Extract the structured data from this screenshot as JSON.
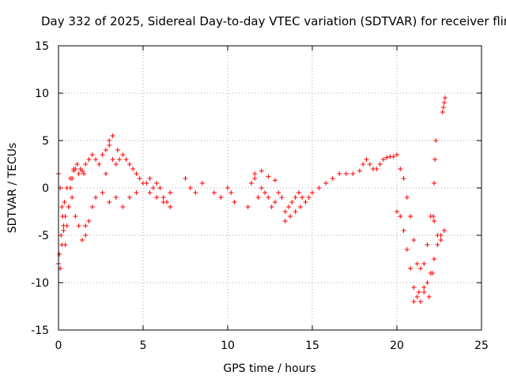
{
  "chart_data": {
    "type": "scatter",
    "title": "Day 332 of 2025, Sidereal Day-to-day VTEC variation (SDTVAR) for receiver flin",
    "xlabel": "GPS time / hours",
    "ylabel": "SDTVAR / TECUs",
    "xlim": [
      0,
      25
    ],
    "ylim": [
      -15,
      15
    ],
    "xticks": [
      0,
      5,
      10,
      15,
      20,
      25
    ],
    "yticks": [
      -15,
      -10,
      -5,
      0,
      5,
      10,
      15
    ],
    "xtick_labels": [
      "0",
      "5",
      "10",
      "15",
      "20",
      "25"
    ],
    "ytick_labels": [
      "-15",
      "-10",
      "-5",
      "0",
      "5",
      "10",
      "15"
    ],
    "grid": true,
    "marker": "+",
    "color": "#ff0000",
    "series": [
      {
        "name": "SDTVAR",
        "x": [
          0.0,
          0.1,
          0.2,
          0.3,
          0.4,
          0.5,
          0.6,
          0.7,
          0.8,
          0.9,
          1.0,
          1.2,
          1.4,
          1.6,
          1.8,
          2.0,
          2.2,
          2.4,
          2.6,
          2.8,
          3.0,
          3.2,
          3.4,
          3.6,
          3.8,
          4.0,
          4.2,
          4.4,
          4.6,
          4.8,
          5.0,
          5.2,
          5.4,
          5.6,
          5.8,
          6.0,
          6.2,
          6.4,
          6.6,
          7.5,
          7.8,
          8.1,
          8.5,
          9.2,
          9.6,
          10.0,
          10.2,
          10.4,
          11.2,
          11.4,
          11.6,
          11.8,
          12.0,
          12.2,
          12.4,
          12.6,
          12.8,
          13.0,
          13.2,
          13.4,
          13.6,
          13.8,
          14.0,
          14.2,
          14.4,
          14.6,
          14.8,
          15.0,
          15.4,
          15.8,
          16.2,
          16.6,
          17.0,
          17.4,
          17.8,
          18.0,
          18.2,
          18.4,
          18.6,
          18.8,
          19.0,
          19.2,
          19.4,
          19.6,
          19.8,
          20.0,
          20.2,
          20.4,
          20.6,
          20.8,
          21.0,
          21.2,
          21.4,
          21.6,
          21.8,
          22.0,
          22.2,
          22.4,
          22.6,
          22.8,
          0.05,
          0.15,
          0.25,
          0.35,
          0.5,
          0.7,
          0.9,
          1.1,
          1.3,
          1.5,
          0.0,
          0.1,
          0.2,
          0.3,
          0.4,
          0.6,
          0.8,
          1.0,
          1.2,
          1.4,
          1.6,
          1.8,
          2.0,
          2.2,
          2.6,
          3.0,
          3.4,
          3.8,
          4.2,
          4.6,
          5.0,
          5.4,
          5.8,
          6.2,
          6.6,
          20.0,
          20.2,
          20.4,
          20.6,
          20.8,
          21.0,
          21.2,
          21.4,
          21.6,
          21.8,
          22.0,
          22.2,
          22.4,
          22.6,
          22.8,
          21.0,
          21.3,
          21.6,
          21.9,
          22.1,
          22.15,
          22.2,
          22.25,
          22.3,
          22.7,
          22.75,
          22.8,
          22.85,
          3.0,
          3.2,
          1.6,
          2.8,
          3.5,
          13.4,
          13.7,
          14.0,
          14.3,
          14.6,
          11.6,
          12.0,
          12.4,
          12.8
        ],
        "y": [
          1.5,
          0.0,
          -2.0,
          -4.5,
          -6.0,
          -4.0,
          -2.0,
          0.0,
          1.0,
          1.8,
          2.0,
          1.5,
          1.8,
          2.5,
          3.0,
          3.5,
          3.0,
          2.5,
          3.5,
          4.0,
          4.5,
          3.0,
          2.5,
          3.0,
          3.5,
          3.0,
          2.5,
          2.0,
          1.5,
          1.0,
          0.5,
          0.5,
          1.0,
          0.0,
          0.5,
          0.0,
          -1.0,
          -1.5,
          -0.5,
          1.0,
          0.0,
          -0.5,
          0.5,
          -0.5,
          -1.0,
          0.0,
          -0.5,
          -1.5,
          -2.0,
          0.5,
          1.0,
          -1.0,
          0.0,
          -0.5,
          -1.0,
          -2.0,
          -1.5,
          -0.5,
          -1.0,
          -2.5,
          -2.0,
          -1.5,
          -1.0,
          -0.5,
          -1.0,
          -1.5,
          -1.0,
          -0.5,
          0.0,
          0.5,
          1.0,
          1.5,
          1.5,
          1.5,
          1.8,
          2.5,
          3.0,
          2.5,
          2.0,
          2.0,
          2.5,
          3.0,
          3.2,
          3.3,
          3.3,
          3.5,
          2.0,
          1.0,
          -1.0,
          -3.0,
          -5.5,
          -8.0,
          -8.5,
          -8.0,
          -6.0,
          -3.0,
          -3.5,
          -5.0,
          -5.5,
          -4.5,
          -7.0,
          -5.0,
          -3.0,
          -1.5,
          0.0,
          1.0,
          2.0,
          2.5,
          2.0,
          1.5,
          -8.0,
          -8.5,
          -6.0,
          -4.0,
          -3.0,
          -2.0,
          -1.0,
          -3.0,
          -4.0,
          -5.5,
          -5.0,
          -3.5,
          -2.0,
          -1.0,
          -0.5,
          -1.5,
          -1.0,
          -2.0,
          -1.0,
          -0.5,
          0.5,
          -0.5,
          -1.0,
          -1.5,
          -2.0,
          -2.5,
          -3.0,
          -4.5,
          -6.5,
          -8.5,
          -10.5,
          -11.5,
          -12.0,
          -11.0,
          -10.0,
          -9.0,
          -7.5,
          -6.0,
          -5.0,
          -4.5,
          -12.0,
          -11.0,
          -10.5,
          -11.5,
          -9.0,
          -3.0,
          0.5,
          3.0,
          5.0,
          8.0,
          8.5,
          9.0,
          9.5,
          5.0,
          5.5,
          -4.0,
          1.5,
          4.0,
          -3.5,
          -3.0,
          -2.5,
          -2.0,
          -1.5,
          1.5,
          1.8,
          1.2,
          0.8
        ]
      }
    ]
  }
}
